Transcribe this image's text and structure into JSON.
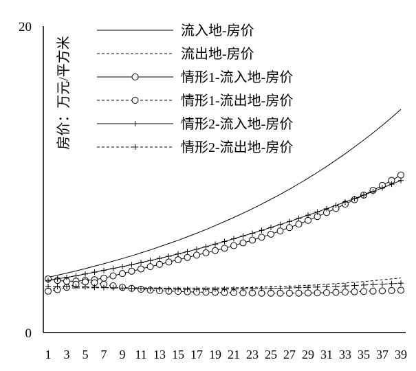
{
  "chart_data": {
    "type": "line",
    "title": "",
    "xlabel": "",
    "ylabel": "房价：万元/平方米",
    "ylim": [
      0,
      20
    ],
    "xlim": [
      1,
      39
    ],
    "y_ticks": [
      "0",
      "20"
    ],
    "x_tick_labels": [
      "1",
      "3",
      "5",
      "7",
      "9",
      "11",
      "13",
      "15",
      "17",
      "19",
      "21",
      "23",
      "25",
      "27",
      "29",
      "31",
      "33",
      "35",
      "37",
      "39"
    ],
    "grid": false,
    "legend_position": "top",
    "x": [
      1,
      2,
      3,
      4,
      5,
      6,
      7,
      8,
      9,
      10,
      11,
      12,
      13,
      14,
      15,
      16,
      17,
      18,
      19,
      20,
      21,
      22,
      23,
      24,
      25,
      26,
      27,
      28,
      29,
      30,
      31,
      32,
      33,
      34,
      35,
      36,
      37,
      39,
      38
    ],
    "series": [
      {
        "name": "流入地-房价",
        "line_style": "solid",
        "marker": "none",
        "values": [
          3.6,
          3.74,
          3.88,
          4.02,
          4.17,
          4.33,
          4.49,
          4.66,
          4.83,
          5.01,
          5.2,
          5.39,
          5.6,
          5.81,
          6.02,
          6.25,
          6.48,
          6.72,
          6.98,
          7.24,
          7.51,
          7.79,
          8.08,
          8.38,
          8.7,
          9.02,
          9.36,
          9.71,
          10.07,
          10.45,
          10.84,
          11.25,
          11.67,
          12.11,
          12.56,
          13.03,
          13.52,
          14.57,
          14.03
        ]
      },
      {
        "name": "流出地-房价",
        "line_style": "dashed",
        "marker": "none",
        "values": [
          2.85,
          2.88,
          2.9,
          2.91,
          2.92,
          2.92,
          2.93,
          2.93,
          2.93,
          2.92,
          2.92,
          2.91,
          2.91,
          2.9,
          2.9,
          2.9,
          2.9,
          2.9,
          2.91,
          2.91,
          2.92,
          2.93,
          2.94,
          2.96,
          2.98,
          3.0,
          3.02,
          3.05,
          3.08,
          3.11,
          3.15,
          3.19,
          3.23,
          3.28,
          3.33,
          3.38,
          3.44,
          3.56,
          3.5
        ]
      },
      {
        "name": "情形1-流入地-房价",
        "line_style": "solid",
        "marker": "circle",
        "values": [
          3.5,
          3.4,
          3.35,
          3.35,
          3.4,
          3.45,
          3.55,
          3.7,
          3.85,
          4.0,
          4.15,
          4.3,
          4.45,
          4.6,
          4.75,
          4.9,
          5.05,
          5.2,
          5.35,
          5.5,
          5.67,
          5.85,
          6.03,
          6.22,
          6.42,
          6.63,
          6.85,
          7.08,
          7.32,
          7.57,
          7.83,
          8.1,
          8.38,
          8.67,
          8.97,
          9.28,
          9.6,
          10.28,
          9.93
        ]
      },
      {
        "name": "情形1-流出地-房价",
        "line_style": "dashed",
        "marker": "circle",
        "values": [
          2.7,
          2.8,
          2.95,
          3.15,
          3.3,
          3.25,
          3.15,
          3.05,
          2.95,
          2.88,
          2.82,
          2.77,
          2.73,
          2.7,
          2.68,
          2.66,
          2.64,
          2.63,
          2.62,
          2.61,
          2.6,
          2.59,
          2.58,
          2.57,
          2.57,
          2.57,
          2.57,
          2.57,
          2.58,
          2.59,
          2.6,
          2.62,
          2.64,
          2.66,
          2.68,
          2.7,
          2.72,
          2.76,
          2.74
        ]
      },
      {
        "name": "情形2-流入地-房价",
        "line_style": "solid",
        "marker": "plus",
        "values": [
          3.4,
          3.5,
          3.6,
          3.7,
          3.82,
          3.94,
          4.06,
          4.18,
          4.3,
          4.43,
          4.56,
          4.7,
          4.84,
          4.98,
          5.13,
          5.28,
          5.44,
          5.6,
          5.77,
          5.94,
          6.12,
          6.3,
          6.48,
          6.67,
          6.86,
          7.05,
          7.25,
          7.45,
          7.66,
          7.87,
          8.08,
          8.3,
          8.52,
          8.74,
          8.97,
          9.2,
          9.44,
          9.92,
          9.68
        ]
      },
      {
        "name": "情形2-流出地-房价",
        "line_style": "dashed",
        "marker": "plus",
        "values": [
          3.0,
          3.0,
          3.0,
          3.0,
          2.98,
          2.96,
          2.94,
          2.92,
          2.9,
          2.88,
          2.87,
          2.86,
          2.85,
          2.84,
          2.83,
          2.83,
          2.83,
          2.83,
          2.83,
          2.84,
          2.84,
          2.85,
          2.86,
          2.87,
          2.88,
          2.89,
          2.91,
          2.93,
          2.95,
          2.97,
          2.99,
          3.01,
          3.04,
          3.07,
          3.1,
          3.13,
          3.16,
          3.22,
          3.19
        ]
      }
    ]
  }
}
